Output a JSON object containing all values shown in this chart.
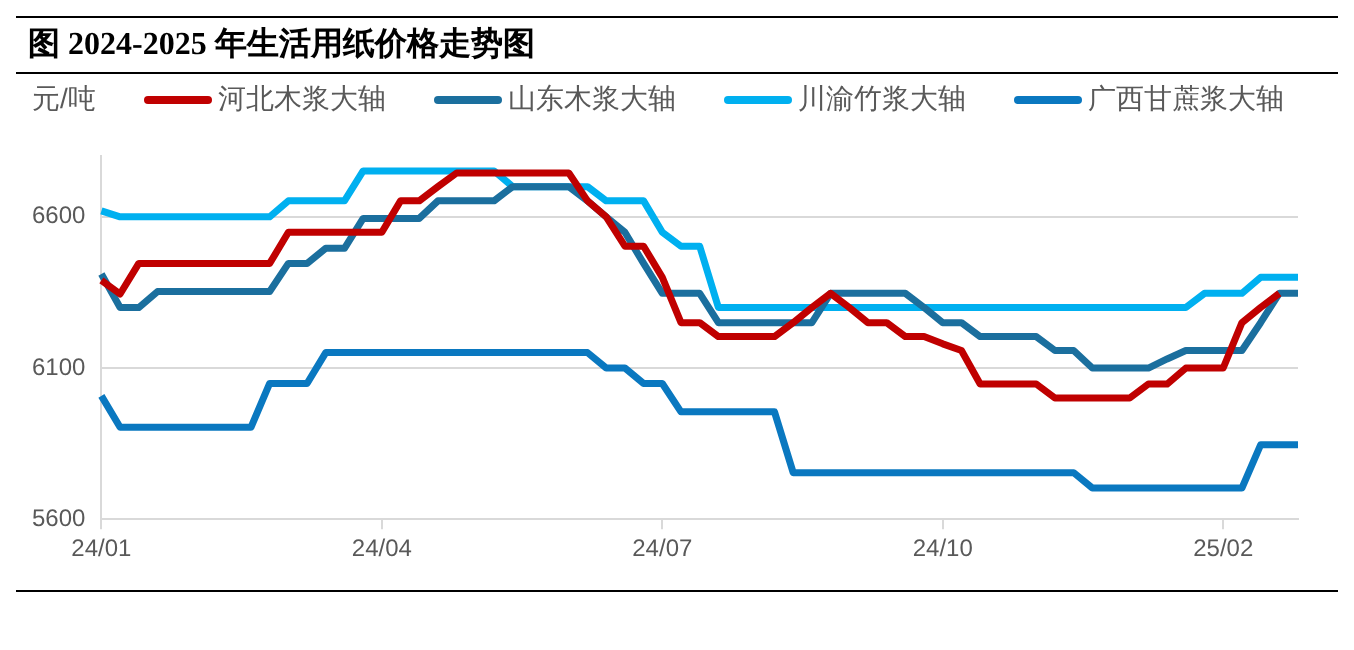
{
  "chart_data": {
    "type": "line",
    "title": "图 2024-2025 年生活用纸价格走势图",
    "ylabel": "元/吨",
    "categories": [
      "24/01",
      null,
      null,
      null,
      null,
      null,
      null,
      null,
      null,
      null,
      null,
      null,
      null,
      null,
      null,
      "24/04",
      null,
      null,
      null,
      null,
      null,
      null,
      null,
      null,
      null,
      null,
      null,
      null,
      null,
      null,
      "24/07",
      null,
      null,
      null,
      null,
      null,
      null,
      null,
      null,
      null,
      null,
      null,
      null,
      null,
      null,
      "24/10",
      null,
      null,
      null,
      null,
      null,
      null,
      null,
      null,
      null,
      null,
      null,
      null,
      null,
      null,
      "25/02",
      null,
      null,
      null,
      null
    ],
    "series": [
      {
        "name": "河北木浆大轴",
        "color": "#c00000",
        "values": [
          6390,
          6345,
          6446,
          6446,
          6446,
          6446,
          6446,
          6446,
          6446,
          6446,
          6549,
          6549,
          6549,
          6549,
          6549,
          6549,
          6653,
          6653,
          6700,
          6745,
          6745,
          6745,
          6745,
          6745,
          6745,
          6745,
          6653,
          6600,
          6503,
          6503,
          6400,
          6250,
          6250,
          6204,
          6204,
          6204,
          6204,
          6250,
          6300,
          6347,
          6300,
          6250,
          6250,
          6204,
          6204,
          6180,
          6158,
          6047,
          6047,
          6047,
          6047,
          6001,
          6001,
          6001,
          6001,
          6001,
          6047,
          6047,
          6100,
          6100,
          6100,
          6250,
          6300,
          6347,
          null
        ]
      },
      {
        "name": "山东木浆大轴",
        "color": "#1b6f9e",
        "values": [
          6411,
          6300,
          6300,
          6353,
          6353,
          6353,
          6353,
          6353,
          6353,
          6353,
          6446,
          6446,
          6496,
          6496,
          6595,
          6595,
          6595,
          6595,
          6653,
          6653,
          6653,
          6653,
          6700,
          6700,
          6700,
          6700,
          6653,
          6600,
          6549,
          6446,
          6347,
          6347,
          6347,
          6250,
          6250,
          6250,
          6250,
          6250,
          6250,
          6347,
          6347,
          6347,
          6347,
          6347,
          6300,
          6250,
          6250,
          6204,
          6204,
          6204,
          6204,
          6158,
          6158,
          6100,
          6100,
          6100,
          6100,
          6130,
          6158,
          6158,
          6158,
          6158,
          6250,
          6347,
          6347
        ]
      },
      {
        "name": "川渝竹浆大轴",
        "color": "#00b0f0",
        "values": [
          6620,
          6600,
          6600,
          6600,
          6600,
          6600,
          6600,
          6600,
          6600,
          6600,
          6653,
          6653,
          6653,
          6653,
          6752,
          6752,
          6752,
          6752,
          6752,
          6752,
          6752,
          6752,
          6700,
          6700,
          6700,
          6700,
          6700,
          6653,
          6653,
          6653,
          6549,
          6503,
          6503,
          6300,
          6300,
          6300,
          6300,
          6300,
          6300,
          6300,
          6300,
          6300,
          6300,
          6300,
          6300,
          6300,
          6300,
          6300,
          6300,
          6300,
          6300,
          6300,
          6300,
          6300,
          6300,
          6300,
          6300,
          6300,
          6300,
          6347,
          6347,
          6347,
          6400,
          6400,
          6400
        ]
      },
      {
        "name": "广西甘蔗浆大轴",
        "color": "#0a78c0",
        "values": [
          6008,
          5904,
          5904,
          5904,
          5904,
          5904,
          5904,
          5904,
          5904,
          6049,
          6049,
          6049,
          6151,
          6151,
          6151,
          6151,
          6151,
          6151,
          6151,
          6151,
          6151,
          6151,
          6151,
          6151,
          6151,
          6151,
          6151,
          6100,
          6100,
          6049,
          6049,
          5955,
          5955,
          5955,
          5955,
          5955,
          5955,
          5754,
          5754,
          5754,
          5754,
          5754,
          5754,
          5754,
          5754,
          5754,
          5754,
          5754,
          5754,
          5754,
          5754,
          5754,
          5754,
          5703,
          5703,
          5703,
          5703,
          5703,
          5703,
          5703,
          5703,
          5703,
          5846,
          5846,
          5846
        ]
      }
    ],
    "ylim": [
      5600,
      6800
    ],
    "yticks": [
      5600,
      6100,
      6600
    ],
    "grid": "y",
    "legend": "top",
    "marker": "none",
    "line_style": "solid"
  }
}
